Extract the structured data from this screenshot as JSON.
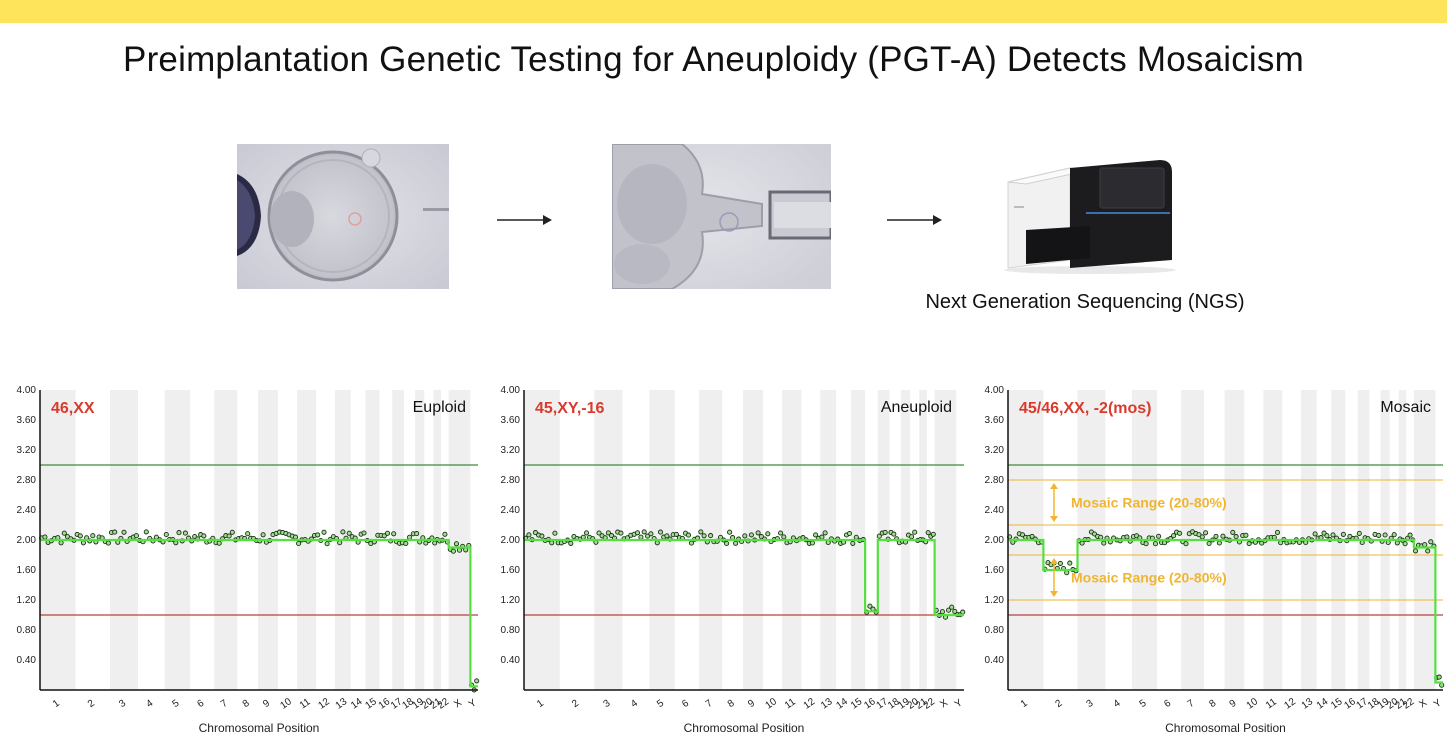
{
  "page": {
    "title": "Preimplantation Genetic Testing for Aneuploidy (PGT-A) Detects Mosaicism",
    "ngs_label": "Next Generation Sequencing (NGS)",
    "colors": {
      "banner": "#fde45a",
      "karyotype_label": "#d93a2b",
      "mosaic_annotation": "#f0b531",
      "data_line": "#55e040",
      "upper_line": "#3c8a3c",
      "lower_line": "#b8403f"
    }
  },
  "workflow": {
    "steps": [
      {
        "name": "blastocyst-biopsy-image"
      },
      {
        "name": "cell-aspiration-image"
      },
      {
        "name": "ngs-sequencer-image"
      }
    ],
    "arrow_icon": "right-arrow-icon"
  },
  "chart_data": [
    {
      "type": "scatter",
      "karyotype": "46,XX",
      "classification": "Euploid",
      "xlabel": "Chromosomal Position",
      "categories": [
        "1",
        "2",
        "3",
        "4",
        "5",
        "6",
        "7",
        "8",
        "9",
        "10",
        "11",
        "12",
        "13",
        "14",
        "15",
        "16",
        "17",
        "18",
        "19",
        "20",
        "21",
        "22",
        "X",
        "Y"
      ],
      "yticks": [
        "4.00",
        "3.60",
        "3.20",
        "2.80",
        "2.40",
        "2.00",
        "1.60",
        "1.20",
        "0.80",
        "0.40"
      ],
      "ylim": [
        0,
        4
      ],
      "reference_lines": [
        3.0,
        1.0
      ],
      "copy_number": [
        2,
        2,
        2,
        2,
        2,
        2,
        2,
        2,
        2,
        2,
        2,
        2,
        2,
        2,
        2,
        2,
        2,
        2,
        2,
        2,
        2,
        2,
        1.9,
        0.05
      ]
    },
    {
      "type": "scatter",
      "karyotype": "45,XY,-16",
      "classification": "Aneuploid",
      "xlabel": "Chromosomal Position",
      "categories": [
        "1",
        "2",
        "3",
        "4",
        "5",
        "6",
        "7",
        "8",
        "9",
        "10",
        "11",
        "12",
        "13",
        "14",
        "15",
        "16",
        "17",
        "18",
        "19",
        "20",
        "21",
        "22",
        "X",
        "Y"
      ],
      "yticks": [
        "4.00",
        "3.60",
        "3.20",
        "2.80",
        "2.40",
        "2.00",
        "1.60",
        "1.20",
        "0.80",
        "0.40"
      ],
      "ylim": [
        0,
        4
      ],
      "reference_lines": [
        3.0,
        1.0
      ],
      "copy_number": [
        2,
        2,
        2,
        2,
        2,
        2,
        2,
        2,
        2,
        2,
        2,
        2,
        2,
        2,
        2,
        1.05,
        2,
        2,
        2,
        2,
        2,
        2,
        1.0,
        1.0
      ]
    },
    {
      "type": "scatter",
      "karyotype": "45/46,XX, -2(mos)",
      "classification": "Mosaic",
      "xlabel": "Chromosomal Position",
      "categories": [
        "1",
        "2",
        "3",
        "4",
        "5",
        "6",
        "7",
        "8",
        "9",
        "10",
        "11",
        "12",
        "13",
        "14",
        "15",
        "16",
        "17",
        "18",
        "19",
        "20",
        "21",
        "22",
        "X",
        "Y"
      ],
      "yticks": [
        "4.00",
        "3.60",
        "3.20",
        "2.80",
        "2.40",
        "2.00",
        "1.60",
        "1.20",
        "0.80",
        "0.40"
      ],
      "ylim": [
        0,
        4
      ],
      "reference_lines": [
        3.0,
        1.0
      ],
      "mosaic_range_lines": [
        2.8,
        2.2,
        1.8,
        1.2
      ],
      "annotations": [
        "Mosaic Range (20-80%)",
        "Mosaic Range (20-80%)"
      ],
      "copy_number": [
        2,
        1.6,
        2,
        2,
        2,
        2,
        2,
        2,
        2,
        2,
        2,
        2,
        2,
        2,
        2,
        2,
        2,
        2,
        2,
        2,
        2,
        2,
        1.9,
        0.1
      ]
    }
  ]
}
